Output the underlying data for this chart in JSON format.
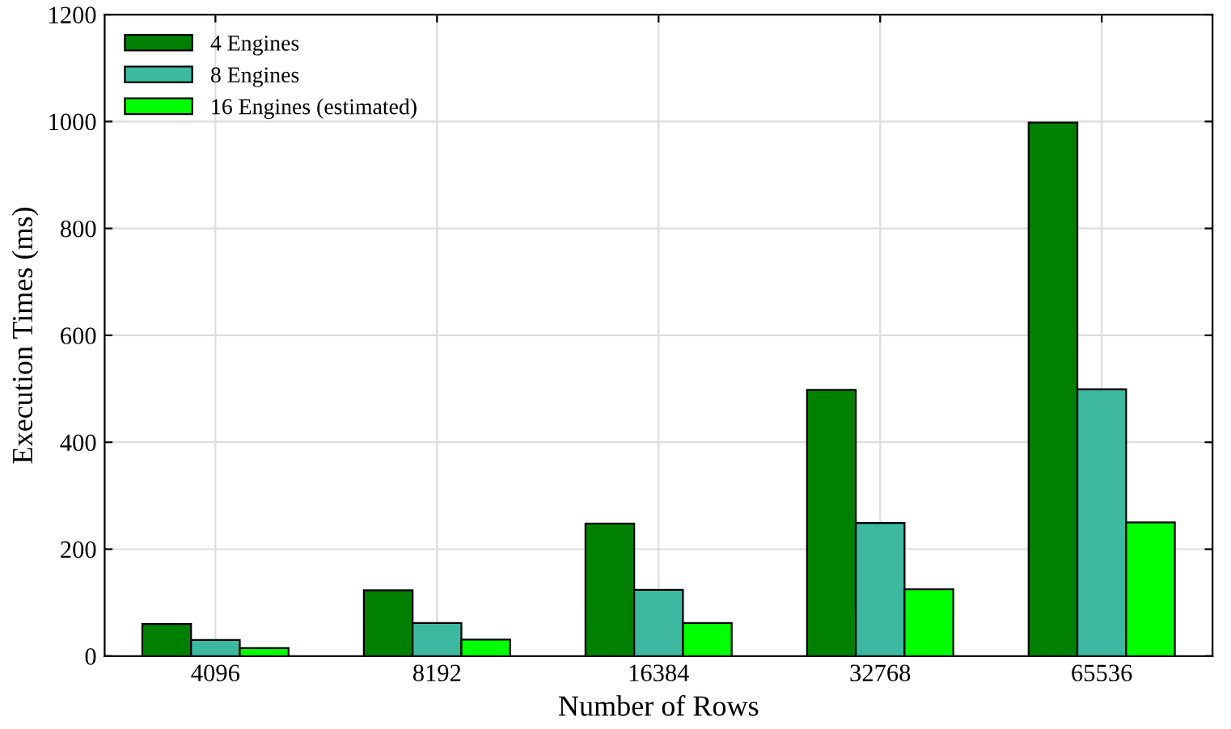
{
  "chart_data": {
    "type": "bar",
    "xlabel": "Number of Rows",
    "ylabel": "Execution Times (ms)",
    "categories": [
      "4096",
      "8192",
      "16384",
      "32768",
      "65536"
    ],
    "series": [
      {
        "name": "4 Engines",
        "color": "#008000",
        "values": [
          60,
          123,
          248,
          498,
          998
        ]
      },
      {
        "name": "8 Engines",
        "color": "#3cb9a0",
        "values": [
          30,
          62,
          124,
          249,
          499
        ]
      },
      {
        "name": "16 Engines (estimated)",
        "color": "#00ff00",
        "values": [
          15,
          31,
          62,
          125,
          250
        ]
      }
    ],
    "ylim": [
      0,
      1200
    ],
    "yticks": [
      0,
      200,
      400,
      600,
      800,
      1000,
      1200
    ],
    "grid": true,
    "legend": "top left"
  }
}
